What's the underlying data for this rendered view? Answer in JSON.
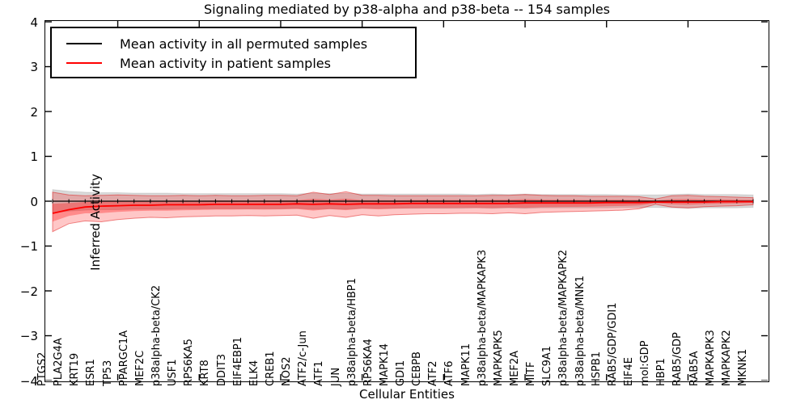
{
  "figure": {
    "title": "Signaling mediated by p38-alpha and p38-beta -- 154 samples",
    "xlabel": "Cellular Entities",
    "ylabel": "Inferred Activity"
  },
  "legend": {
    "entries": [
      {
        "label": "Mean activity in all permuted samples",
        "color": "#000000"
      },
      {
        "label": "Mean activity in patient samples",
        "color": "#ff0000"
      }
    ]
  },
  "chart_data": {
    "type": "line",
    "title": "Signaling mediated by p38-alpha and p38-beta -- 154 samples",
    "xlabel": "Cellular Entities",
    "ylabel": "Inferred Activity",
    "ylim": [
      -4,
      4
    ],
    "grid": false,
    "legend_position": "upper left",
    "yticks": {
      "values": [
        4,
        3,
        2,
        1,
        0,
        -1,
        -2,
        -3,
        -4
      ],
      "labels": [
        "4",
        "3",
        "2",
        "1",
        "0",
        "−1",
        "−2",
        "−3",
        "−4"
      ]
    },
    "xtick_every": 5,
    "xtick_start_index": 4,
    "categories": [
      "PTGS2",
      "PLA2G4A",
      "KRT19",
      "ESR1",
      "TP53",
      "PPARGC1A",
      "MEF2C",
      "p38alpha-beta/CK2",
      "USF1",
      "RPS6KA5",
      "KRT8",
      "DDIT3",
      "EIF4EBP1",
      "ELK4",
      "CREB1",
      "NOS2",
      "ATF2/c-Jun",
      "ATF1",
      "JUN",
      "p38alpha-beta/HBP1",
      "RPS6KA4",
      "MAPK14",
      "GDI1",
      "CEBPB",
      "ATF2",
      "ATF6",
      "MAPK11",
      "p38alpha-beta/MAPKAPK3",
      "MAPKAPK5",
      "MEF2A",
      "MITF",
      "SLC9A1",
      "p38alpha-beta/MAPKAPK2",
      "p38alpha-beta/MNK1",
      "HSPB1",
      "RAB5/GDP/GDI1",
      "EIF4E",
      "mol:GDP",
      "HBP1",
      "RAB5/GDP",
      "RAB5A",
      "MAPKAPK3",
      "MAPKAPK2",
      "MKNK1"
    ],
    "series": [
      {
        "name": "Mean activity in all permuted samples",
        "color": "#000000",
        "band_color": "rgba(0,0,0,0.15)",
        "values": [
          0,
          0,
          0,
          0,
          0,
          0,
          0,
          0,
          0,
          0,
          0,
          0,
          0,
          0,
          0,
          0,
          0,
          0,
          0,
          0,
          0,
          0,
          0,
          0,
          0,
          0,
          0,
          0,
          0,
          0,
          0,
          0,
          0,
          0,
          0,
          0,
          0,
          0,
          0,
          0,
          0,
          0,
          0,
          0
        ],
        "band_half_width": [
          0.26,
          0.22,
          0.2,
          0.19,
          0.19,
          0.18,
          0.18,
          0.18,
          0.17,
          0.17,
          0.17,
          0.17,
          0.17,
          0.17,
          0.17,
          0.16,
          0.18,
          0.17,
          0.18,
          0.16,
          0.16,
          0.16,
          0.16,
          0.16,
          0.16,
          0.16,
          0.15,
          0.16,
          0.15,
          0.16,
          0.15,
          0.15,
          0.15,
          0.15,
          0.15,
          0.14,
          0.14,
          0.14,
          0.15,
          0.16,
          0.15,
          0.15,
          0.15,
          0.14
        ]
      },
      {
        "name": "Mean activity in patient samples",
        "color": "#ff0000",
        "band_color": "rgba(255,0,0,0.22)",
        "band_edge_color": "rgba(220,0,0,0.45)",
        "inner_band_color": "rgba(255,0,0,0.30)",
        "inner_band_fraction": 0.45,
        "values": [
          -0.27,
          -0.19,
          -0.13,
          -0.11,
          -0.1,
          -0.09,
          -0.09,
          -0.08,
          -0.08,
          -0.08,
          -0.07,
          -0.07,
          -0.07,
          -0.07,
          -0.07,
          -0.06,
          -0.07,
          -0.06,
          -0.07,
          -0.06,
          -0.06,
          -0.06,
          -0.05,
          -0.05,
          -0.05,
          -0.05,
          -0.05,
          -0.05,
          -0.05,
          -0.04,
          -0.04,
          -0.04,
          -0.04,
          -0.04,
          -0.03,
          -0.03,
          -0.03,
          -0.02,
          -0.02,
          -0.02,
          -0.02,
          -0.01,
          -0.01,
          -0.01
        ],
        "band_upper": [
          0.2,
          0.14,
          0.12,
          0.13,
          0.14,
          0.13,
          0.12,
          0.12,
          0.13,
          0.12,
          0.13,
          0.12,
          0.12,
          0.13,
          0.13,
          0.12,
          0.2,
          0.15,
          0.21,
          0.13,
          0.13,
          0.12,
          0.12,
          0.12,
          0.12,
          0.12,
          0.12,
          0.13,
          0.13,
          0.15,
          0.13,
          0.12,
          0.12,
          0.11,
          0.11,
          0.11,
          0.1,
          0.05,
          0.12,
          0.13,
          0.11,
          0.1,
          0.09,
          0.08
        ],
        "band_lower": [
          -0.68,
          -0.5,
          -0.44,
          -0.46,
          -0.41,
          -0.38,
          -0.36,
          -0.37,
          -0.35,
          -0.34,
          -0.33,
          -0.33,
          -0.32,
          -0.33,
          -0.32,
          -0.31,
          -0.38,
          -0.32,
          -0.36,
          -0.3,
          -0.33,
          -0.3,
          -0.29,
          -0.28,
          -0.28,
          -0.27,
          -0.27,
          -0.28,
          -0.26,
          -0.28,
          -0.25,
          -0.24,
          -0.23,
          -0.22,
          -0.21,
          -0.2,
          -0.17,
          -0.07,
          -0.13,
          -0.15,
          -0.12,
          -0.11,
          -0.1,
          -0.08
        ]
      }
    ]
  }
}
